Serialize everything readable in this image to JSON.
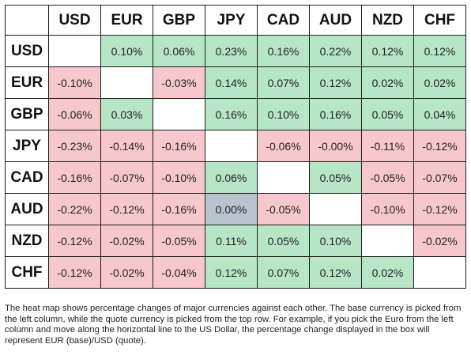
{
  "heatmap": {
    "currencies": [
      "USD",
      "EUR",
      "GBP",
      "JPY",
      "CAD",
      "AUD",
      "NZD",
      "CHF"
    ],
    "rows": [
      [
        "",
        "0.10%",
        "0.06%",
        "0.23%",
        "0.16%",
        "0.22%",
        "0.12%",
        "0.12%"
      ],
      [
        "-0.10%",
        "",
        "-0.03%",
        "0.14%",
        "0.07%",
        "0.12%",
        "0.02%",
        "0.02%"
      ],
      [
        "-0.06%",
        "0.03%",
        "",
        "0.16%",
        "0.10%",
        "0.16%",
        "0.05%",
        "0.04%"
      ],
      [
        "-0.23%",
        "-0.14%",
        "-0.16%",
        "",
        "-0.06%",
        "-0.00%",
        "-0.11%",
        "-0.12%"
      ],
      [
        "-0.16%",
        "-0.07%",
        "-0.10%",
        "0.06%",
        "",
        "0.05%",
        "-0.05%",
        "-0.07%"
      ],
      [
        "-0.22%",
        "-0.12%",
        "-0.16%",
        "0.00%",
        "-0.05%",
        "",
        "-0.10%",
        "-0.12%"
      ],
      [
        "-0.12%",
        "-0.02%",
        "-0.05%",
        "0.11%",
        "0.05%",
        "0.10%",
        "",
        "-0.02%"
      ],
      [
        "-0.12%",
        "-0.02%",
        "-0.04%",
        "0.12%",
        "0.07%",
        "0.12%",
        "0.02%",
        ""
      ]
    ],
    "colors": {
      "positive": "#b7e6c7",
      "negative": "#f7c8cb",
      "neutral": "#b9c2cd",
      "empty": "#ffffff"
    }
  },
  "note": "The heat map shows percentage changes of major currencies against each other. The base currency is picked from the left column, while the quote currency is picked from the top row. For example, if you pick the Euro from the left column and move along the horizontal line to the US Dollar, the percentage change displayed in the box will represent EUR (base)/USD (quote)."
}
